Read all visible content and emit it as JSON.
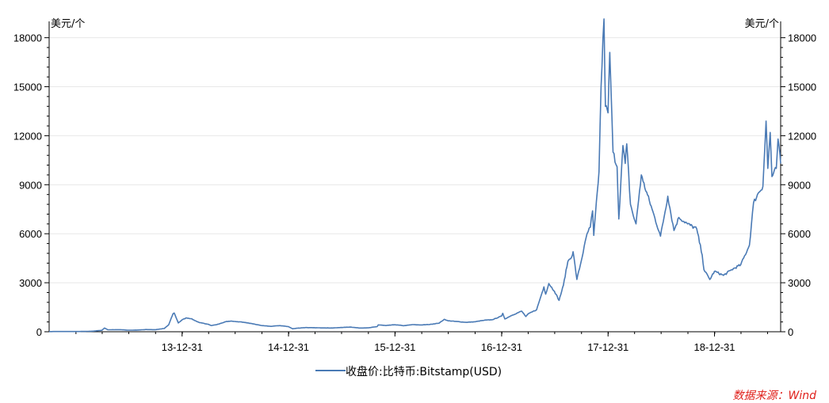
{
  "chart_data": {
    "type": "line",
    "y_unit_left": "美元/个",
    "y_unit_right": "美元/个",
    "x_ticks": [
      "13-12-31",
      "14-12-31",
      "15-12-31",
      "16-12-31",
      "17-12-31",
      "18-12-31"
    ],
    "y_ticks": [
      "0",
      "3000",
      "6000",
      "9000",
      "12000",
      "15000",
      "18000"
    ],
    "ylim": [
      0,
      19000
    ],
    "xlim": [
      "2012-10-01",
      "2019-08-15"
    ],
    "grid": "horizontal",
    "legend_position": "bottom-center",
    "series": [
      {
        "name": "收盘价:比特币:Bitstamp(USD)",
        "color": "#4a7ab5",
        "points": [
          [
            "2012-10-01",
            12
          ],
          [
            "2012-12-31",
            13
          ],
          [
            "2013-01-31",
            20
          ],
          [
            "2013-02-28",
            33
          ],
          [
            "2013-03-31",
            90
          ],
          [
            "2013-04-09",
            230
          ],
          [
            "2013-04-20",
            120
          ],
          [
            "2013-05-31",
            128
          ],
          [
            "2013-06-30",
            95
          ],
          [
            "2013-07-31",
            105
          ],
          [
            "2013-08-31",
            135
          ],
          [
            "2013-09-30",
            125
          ],
          [
            "2013-10-31",
            200
          ],
          [
            "2013-11-15",
            420
          ],
          [
            "2013-11-30",
            1100
          ],
          [
            "2013-12-04",
            1150
          ],
          [
            "2013-12-18",
            540
          ],
          [
            "2013-12-31",
            730
          ],
          [
            "2014-01-15",
            850
          ],
          [
            "2014-01-31",
            800
          ],
          [
            "2014-02-28",
            560
          ],
          [
            "2014-03-31",
            460
          ],
          [
            "2014-04-10",
            380
          ],
          [
            "2014-04-30",
            440
          ],
          [
            "2014-05-31",
            620
          ],
          [
            "2014-06-15",
            650
          ],
          [
            "2014-06-30",
            630
          ],
          [
            "2014-07-31",
            580
          ],
          [
            "2014-08-31",
            480
          ],
          [
            "2014-09-30",
            380
          ],
          [
            "2014-10-31",
            330
          ],
          [
            "2014-11-30",
            375
          ],
          [
            "2014-12-31",
            315
          ],
          [
            "2015-01-14",
            180
          ],
          [
            "2015-01-31",
            220
          ],
          [
            "2015-02-28",
            255
          ],
          [
            "2015-03-31",
            245
          ],
          [
            "2015-04-30",
            235
          ],
          [
            "2015-05-31",
            230
          ],
          [
            "2015-06-30",
            260
          ],
          [
            "2015-07-31",
            285
          ],
          [
            "2015-08-31",
            230
          ],
          [
            "2015-09-30",
            236
          ],
          [
            "2015-10-31",
            315
          ],
          [
            "2015-11-04",
            420
          ],
          [
            "2015-11-30",
            380
          ],
          [
            "2015-12-31",
            430
          ],
          [
            "2016-01-31",
            370
          ],
          [
            "2016-02-29",
            435
          ],
          [
            "2016-03-31",
            415
          ],
          [
            "2016-04-30",
            450
          ],
          [
            "2016-05-31",
            530
          ],
          [
            "2016-06-17",
            760
          ],
          [
            "2016-06-30",
            670
          ],
          [
            "2016-07-31",
            625
          ],
          [
            "2016-08-31",
            575
          ],
          [
            "2016-09-30",
            610
          ],
          [
            "2016-10-31",
            700
          ],
          [
            "2016-11-30",
            740
          ],
          [
            "2016-12-31",
            960
          ],
          [
            "2017-01-04",
            1130
          ],
          [
            "2017-01-11",
            780
          ],
          [
            "2017-01-31",
            970
          ],
          [
            "2017-02-28",
            1190
          ],
          [
            "2017-03-10",
            1260
          ],
          [
            "2017-03-24",
            930
          ],
          [
            "2017-03-31",
            1080
          ],
          [
            "2017-04-30",
            1350
          ],
          [
            "2017-05-25",
            2750
          ],
          [
            "2017-05-31",
            2300
          ],
          [
            "2017-06-11",
            2950
          ],
          [
            "2017-06-30",
            2480
          ],
          [
            "2017-07-16",
            1920
          ],
          [
            "2017-07-31",
            2850
          ],
          [
            "2017-08-15",
            4300
          ],
          [
            "2017-08-31",
            4700
          ],
          [
            "2017-09-02",
            4900
          ],
          [
            "2017-09-15",
            3200
          ],
          [
            "2017-09-30",
            4330
          ],
          [
            "2017-10-20",
            6000
          ],
          [
            "2017-10-31",
            6400
          ],
          [
            "2017-11-08",
            7400
          ],
          [
            "2017-11-12",
            5900
          ],
          [
            "2017-11-30",
            9800
          ],
          [
            "2017-12-07",
            15000
          ],
          [
            "2017-12-17",
            19150
          ],
          [
            "2017-12-22",
            13800
          ],
          [
            "2017-12-31",
            13400
          ],
          [
            "2018-01-06",
            17100
          ],
          [
            "2018-01-17",
            11000
          ],
          [
            "2018-01-31",
            10100
          ],
          [
            "2018-02-06",
            6900
          ],
          [
            "2018-02-20",
            11400
          ],
          [
            "2018-02-28",
            10300
          ],
          [
            "2018-03-05",
            11500
          ],
          [
            "2018-03-18",
            7800
          ],
          [
            "2018-03-31",
            6900
          ],
          [
            "2018-04-06",
            6600
          ],
          [
            "2018-04-24",
            9600
          ],
          [
            "2018-04-30",
            9200
          ],
          [
            "2018-05-31",
            7500
          ],
          [
            "2018-06-29",
            5850
          ],
          [
            "2018-07-24",
            8300
          ],
          [
            "2018-08-14",
            6200
          ],
          [
            "2018-08-31",
            7000
          ],
          [
            "2018-09-30",
            6600
          ],
          [
            "2018-10-31",
            6300
          ],
          [
            "2018-11-19",
            4700
          ],
          [
            "2018-11-25",
            3800
          ],
          [
            "2018-12-15",
            3200
          ],
          [
            "2018-12-31",
            3700
          ],
          [
            "2019-01-31",
            3450
          ],
          [
            "2019-02-28",
            3800
          ],
          [
            "2019-03-31",
            4100
          ],
          [
            "2019-04-30",
            5300
          ],
          [
            "2019-05-14",
            7900
          ],
          [
            "2019-05-31",
            8500
          ],
          [
            "2019-06-15",
            8900
          ],
          [
            "2019-06-26",
            12900
          ],
          [
            "2019-07-02",
            10000
          ],
          [
            "2019-07-10",
            12200
          ],
          [
            "2019-07-16",
            9500
          ],
          [
            "2019-07-31",
            10000
          ],
          [
            "2019-08-06",
            11800
          ],
          [
            "2019-08-15",
            10300
          ]
        ]
      }
    ],
    "source": "数据来源：Wind"
  }
}
